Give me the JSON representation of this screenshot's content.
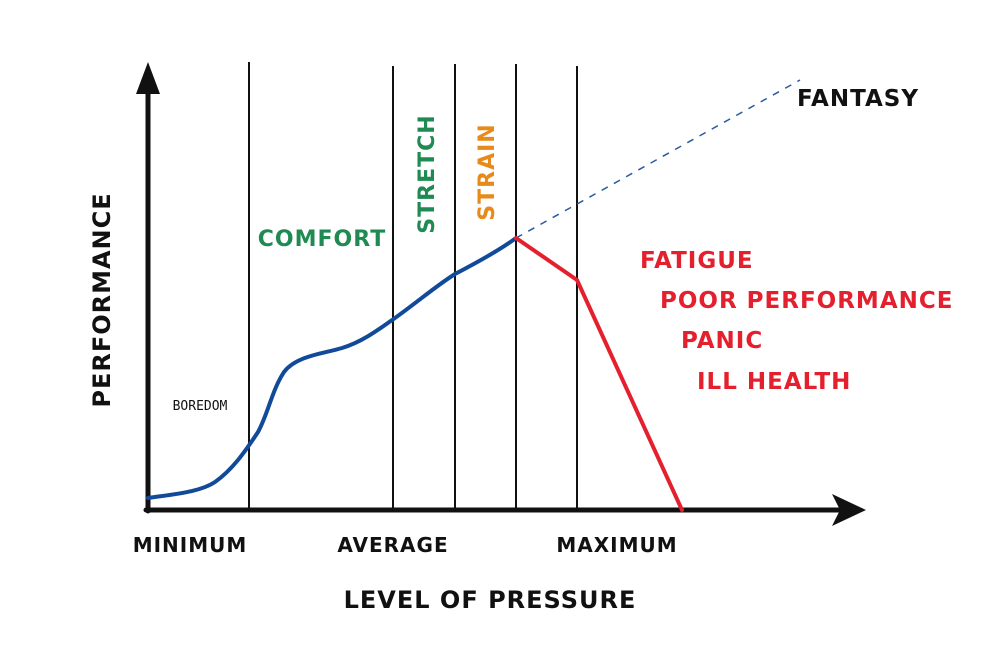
{
  "axis_labels": {
    "y": "PERFORMANCE",
    "x": "LEVEL OF PRESSURE"
  },
  "x_ticks": {
    "minimum": "MINIMUM",
    "average": "AVERAGE",
    "maximum": "MAXIMUM"
  },
  "zones": {
    "boredom": "BOREDOM",
    "comfort": "COMFORT",
    "stretch": "STRETCH",
    "strain": "STRAIN",
    "fantasy": "FANTASY"
  },
  "effects": [
    "FATIGUE",
    "POOR PERFORMANCE",
    "PANIC",
    "ILL HEALTH"
  ],
  "colors": {
    "axis": "#111111",
    "divider": "#111111",
    "curve_rise": "#124a9a",
    "curve_fall": "#e5202e",
    "fantasy_line": "#2a5aa0",
    "comfort_text": "#1f8a52",
    "stretch_text": "#1f8a52",
    "strain_text": "#e88a1a",
    "effects_text": "#e5202e",
    "label_text": "#111111"
  }
}
